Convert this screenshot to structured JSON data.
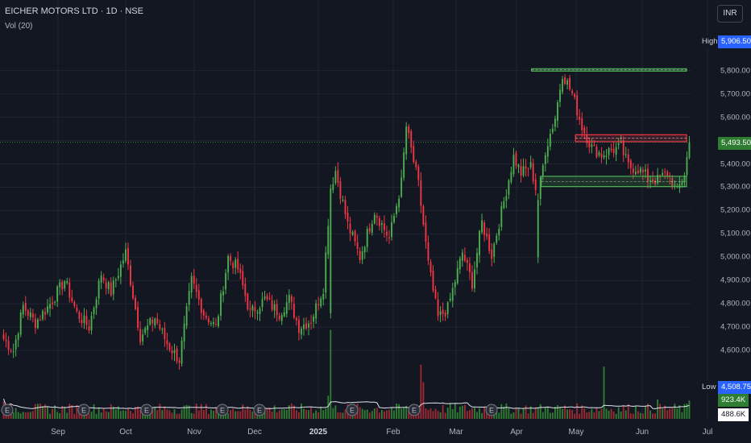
{
  "header": {
    "title": "EICHER MOTORS LTD · 1D · NSE",
    "volume_label": "Vol (20)",
    "currency": "INR"
  },
  "colors": {
    "background": "#131722",
    "up": "#4caf50",
    "down": "#f23645",
    "volume_up": "#2e7d32",
    "volume_down": "#9c2a33",
    "volume_ma": "#e0e3eb",
    "grid": "#1f2431"
  },
  "price_tags": {
    "high": {
      "label": "High",
      "value": "5,906.50"
    },
    "last": {
      "value": "5,493.50"
    },
    "low": {
      "label": "Low",
      "value": "4,508.75"
    },
    "volume": {
      "value": "923.4K"
    },
    "volume_ma": {
      "value": "488.6K"
    }
  },
  "chart_data": {
    "type": "candlestick",
    "symbol": "EICHER MOTORS LTD",
    "timeframe": "1D",
    "exchange": "NSE",
    "y_axis": {
      "ticks": [
        4600,
        4700,
        4800,
        4900,
        5000,
        5100,
        5200,
        5300,
        5400,
        5500,
        5600,
        5700,
        5800
      ],
      "tick_labels": [
        "4,600.00",
        "4,700.00",
        "4,800.00",
        "4,900.00",
        "5,000.00",
        "5,100.00",
        "5,200.00",
        "5,300.00",
        "5,400.00",
        "5,500.00",
        "5,600.00",
        "5,700.00",
        "5,800.00"
      ],
      "range": [
        4480,
        5930
      ]
    },
    "x_axis": {
      "labels": [
        "Sep",
        "Oct",
        "Nov",
        "Dec",
        "2025",
        "Feb",
        "Mar",
        "Apr",
        "May",
        "Jun",
        "Jul"
      ],
      "bold_labels": [
        "2025"
      ]
    },
    "grid": true,
    "anchors": [
      [
        0,
        4650
      ],
      [
        4,
        4600
      ],
      [
        8,
        4790
      ],
      [
        13,
        4720
      ],
      [
        19,
        4800
      ],
      [
        25,
        4900
      ],
      [
        30,
        4760
      ],
      [
        35,
        4700
      ],
      [
        40,
        4930
      ],
      [
        44,
        4850
      ],
      [
        50,
        5020
      ],
      [
        56,
        4660
      ],
      [
        62,
        4740
      ],
      [
        67,
        4630
      ],
      [
        72,
        4560
      ],
      [
        77,
        4900
      ],
      [
        82,
        4760
      ],
      [
        87,
        4700
      ],
      [
        92,
        5000
      ],
      [
        96,
        4950
      ],
      [
        101,
        4760
      ],
      [
        107,
        4820
      ],
      [
        113,
        4760
      ],
      [
        117,
        4820
      ],
      [
        121,
        4700
      ],
      [
        126,
        4730
      ],
      [
        131,
        4870
      ],
      [
        134,
        5300
      ],
      [
        136,
        5370
      ],
      [
        141,
        5140
      ],
      [
        146,
        5000
      ],
      [
        152,
        5200
      ],
      [
        158,
        5080
      ],
      [
        163,
        5320
      ],
      [
        165,
        5560
      ],
      [
        170,
        5310
      ],
      [
        174,
        4970
      ],
      [
        178,
        4740
      ],
      [
        182,
        4780
      ],
      [
        188,
        5020
      ],
      [
        192,
        4890
      ],
      [
        196,
        5150
      ],
      [
        200,
        5010
      ],
      [
        205,
        5240
      ],
      [
        209,
        5430
      ],
      [
        212,
        5360
      ],
      [
        216,
        5390
      ],
      [
        219,
        5250
      ],
      [
        222,
        5460
      ],
      [
        226,
        5600
      ],
      [
        229,
        5790
      ],
      [
        233,
        5700
      ],
      [
        237,
        5560
      ],
      [
        241,
        5470
      ],
      [
        245,
        5440
      ],
      [
        249,
        5460
      ],
      [
        253,
        5470
      ],
      [
        256,
        5390
      ],
      [
        260,
        5380
      ],
      [
        264,
        5340
      ],
      [
        268,
        5330
      ],
      [
        272,
        5360
      ],
      [
        276,
        5280
      ],
      [
        279,
        5360
      ],
      [
        281,
        5493
      ]
    ],
    "volume": {
      "label": "Vol (20)",
      "last": "923.4K",
      "ma_last": "488.6K",
      "spikes": [
        [
          0,
          0.9
        ],
        [
          133,
          1.2
        ],
        [
          134,
          4.6
        ],
        [
          171,
          2.8
        ],
        [
          172,
          1.9
        ],
        [
          246,
          2.7
        ],
        [
          268,
          1.0
        ],
        [
          281,
          0.95
        ]
      ]
    },
    "annotations": [
      {
        "type": "zone",
        "kind": "resistance",
        "color": "#4caf50",
        "y_top": 5808,
        "y_bottom": 5798,
        "x_start": 217,
        "x_end": 281
      },
      {
        "type": "zone",
        "kind": "resistance",
        "color": "#f23645",
        "y_top": 5525,
        "y_bottom": 5495,
        "x_start": 235,
        "x_end": 281
      },
      {
        "type": "zone",
        "kind": "support",
        "color": "#4caf50",
        "y_top": 5347,
        "y_bottom": 5303,
        "x_start": 221,
        "x_end": 281
      }
    ]
  }
}
